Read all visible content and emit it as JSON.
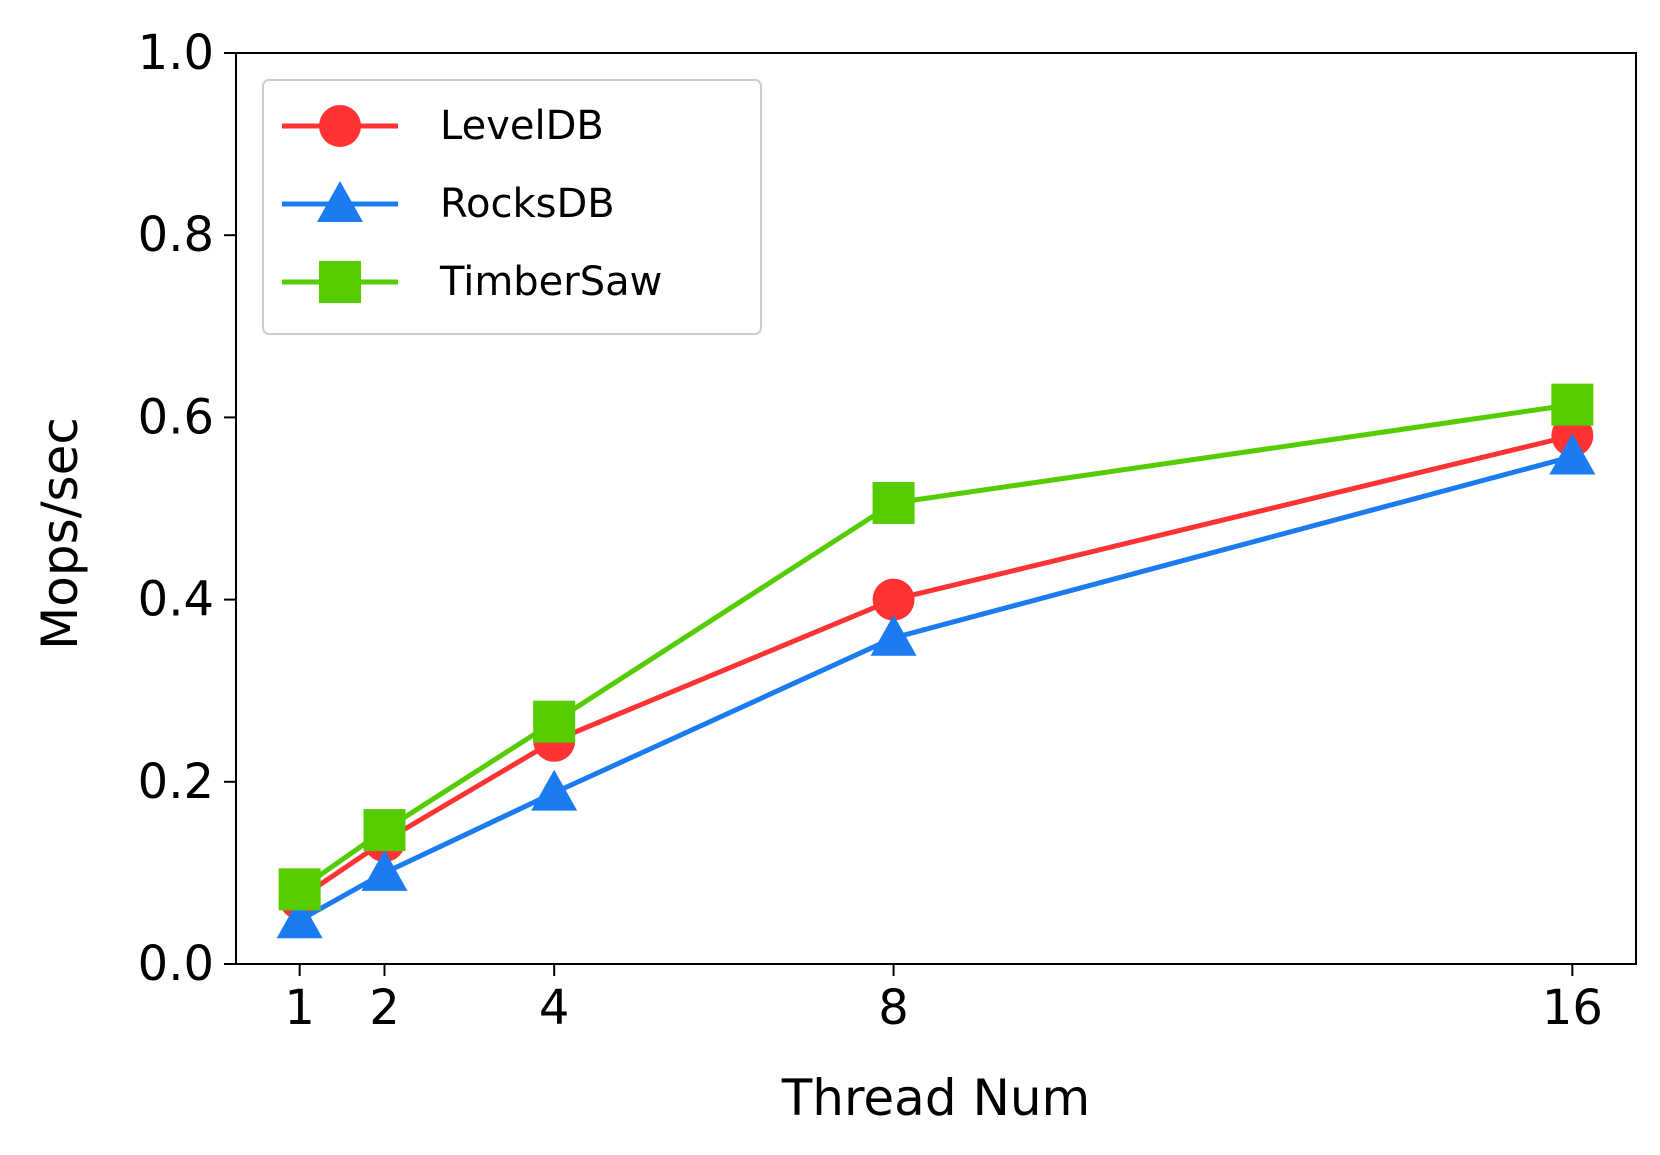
{
  "chart_data": {
    "type": "line",
    "title": "",
    "xlabel": "Thread Num",
    "ylabel": "Mops/sec",
    "x": [
      1,
      2,
      4,
      8,
      16
    ],
    "xtick_labels": [
      "1",
      "2",
      "4",
      "8",
      "16"
    ],
    "ylim": [
      0,
      1.0
    ],
    "yticks": [
      0.0,
      0.2,
      0.4,
      0.6,
      0.8,
      1.0
    ],
    "ytick_labels": [
      "0.0",
      "0.2",
      "0.4",
      "0.6",
      "0.8",
      "1.0"
    ],
    "grid": false,
    "legend_position": "top-left",
    "series": [
      {
        "name": "LevelDB",
        "color": "#ff3333",
        "marker": "circle",
        "values": [
          0.072,
          0.135,
          0.245,
          0.4,
          0.58
        ]
      },
      {
        "name": "RocksDB",
        "color": "#1a7cf0",
        "marker": "triangle",
        "values": [
          0.048,
          0.1,
          0.188,
          0.358,
          0.557
        ]
      },
      {
        "name": "TimberSaw",
        "color": "#55cc00",
        "marker": "square",
        "values": [
          0.082,
          0.147,
          0.266,
          0.506,
          0.614
        ]
      }
    ]
  }
}
